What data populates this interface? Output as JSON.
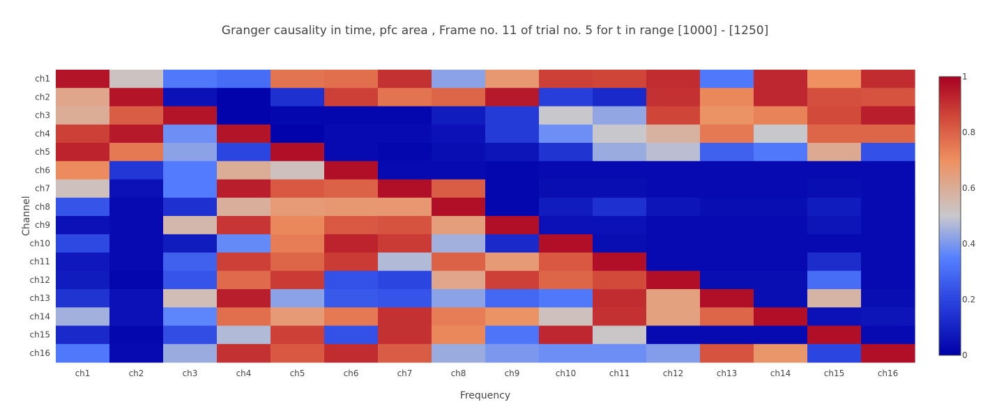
{
  "chart_data": {
    "type": "heatmap",
    "title": "Granger causality in time, pfc area , Frame no. 11 of trial no. 5 for t in range [1000] - [1250]",
    "xlabel": "Frequency",
    "ylabel": "Channel",
    "x": [
      "ch1",
      "ch2",
      "ch3",
      "ch4",
      "ch5",
      "ch6",
      "ch7",
      "ch8",
      "ch9",
      "ch10",
      "ch11",
      "ch12",
      "ch13",
      "ch14",
      "ch15",
      "ch16"
    ],
    "y": [
      "ch1",
      "ch2",
      "ch3",
      "ch4",
      "ch5",
      "ch6",
      "ch7",
      "ch8",
      "ch9",
      "ch10",
      "ch11",
      "ch12",
      "ch13",
      "ch14",
      "ch15",
      "ch16"
    ],
    "zlim": [
      0,
      1
    ],
    "colorbar_ticks": [
      "0",
      "0.2",
      "0.4",
      "0.6",
      "0.8",
      "1"
    ],
    "colorscale": "coolwarm",
    "z": [
      [
        0.96,
        0.52,
        0.33,
        0.3,
        0.76,
        0.77,
        0.9,
        0.42,
        0.67,
        0.87,
        0.86,
        0.91,
        0.33,
        0.92,
        0.7,
        0.91
      ],
      [
        0.62,
        0.96,
        0.05,
        0.01,
        0.14,
        0.87,
        0.76,
        0.79,
        0.95,
        0.18,
        0.12,
        0.9,
        0.72,
        0.92,
        0.84,
        0.83
      ],
      [
        0.6,
        0.81,
        0.96,
        0.01,
        0.02,
        0.02,
        0.02,
        0.08,
        0.17,
        0.5,
        0.43,
        0.86,
        0.69,
        0.73,
        0.85,
        0.94
      ],
      [
        0.87,
        0.95,
        0.38,
        0.96,
        0.01,
        0.03,
        0.03,
        0.05,
        0.17,
        0.38,
        0.5,
        0.58,
        0.75,
        0.5,
        0.79,
        0.79
      ],
      [
        0.93,
        0.75,
        0.42,
        0.2,
        0.97,
        0.03,
        0.02,
        0.04,
        0.06,
        0.15,
        0.44,
        0.48,
        0.27,
        0.33,
        0.61,
        0.23
      ],
      [
        0.71,
        0.16,
        0.34,
        0.6,
        0.53,
        0.97,
        0.03,
        0.03,
        0.02,
        0.03,
        0.03,
        0.03,
        0.03,
        0.03,
        0.03,
        0.03
      ],
      [
        0.53,
        0.05,
        0.34,
        0.94,
        0.82,
        0.8,
        0.97,
        0.81,
        0.02,
        0.04,
        0.04,
        0.03,
        0.03,
        0.03,
        0.04,
        0.03
      ],
      [
        0.24,
        0.03,
        0.14,
        0.59,
        0.66,
        0.67,
        0.67,
        0.97,
        0.02,
        0.08,
        0.14,
        0.06,
        0.04,
        0.04,
        0.08,
        0.03
      ],
      [
        0.05,
        0.03,
        0.56,
        0.89,
        0.72,
        0.82,
        0.83,
        0.65,
        0.97,
        0.05,
        0.05,
        0.03,
        0.03,
        0.03,
        0.06,
        0.03
      ],
      [
        0.21,
        0.03,
        0.08,
        0.37,
        0.74,
        0.93,
        0.88,
        0.45,
        0.12,
        0.97,
        0.04,
        0.03,
        0.03,
        0.03,
        0.03,
        0.03
      ],
      [
        0.07,
        0.03,
        0.27,
        0.87,
        0.79,
        0.88,
        0.47,
        0.8,
        0.66,
        0.82,
        0.97,
        0.03,
        0.03,
        0.03,
        0.13,
        0.03
      ],
      [
        0.08,
        0.02,
        0.24,
        0.78,
        0.88,
        0.23,
        0.2,
        0.62,
        0.87,
        0.79,
        0.85,
        0.97,
        0.04,
        0.04,
        0.3,
        0.03
      ],
      [
        0.15,
        0.05,
        0.54,
        0.94,
        0.42,
        0.25,
        0.24,
        0.42,
        0.29,
        0.33,
        0.91,
        0.64,
        0.97,
        0.04,
        0.57,
        0.04
      ],
      [
        0.45,
        0.05,
        0.36,
        0.77,
        0.66,
        0.75,
        0.9,
        0.74,
        0.69,
        0.53,
        0.9,
        0.64,
        0.79,
        0.97,
        0.05,
        0.06
      ],
      [
        0.12,
        0.02,
        0.22,
        0.47,
        0.87,
        0.23,
        0.9,
        0.72,
        0.32,
        0.92,
        0.51,
        0.03,
        0.03,
        0.03,
        0.97,
        0.03
      ],
      [
        0.33,
        0.03,
        0.44,
        0.9,
        0.82,
        0.91,
        0.81,
        0.44,
        0.4,
        0.38,
        0.38,
        0.41,
        0.83,
        0.68,
        0.2,
        0.97
      ]
    ]
  }
}
